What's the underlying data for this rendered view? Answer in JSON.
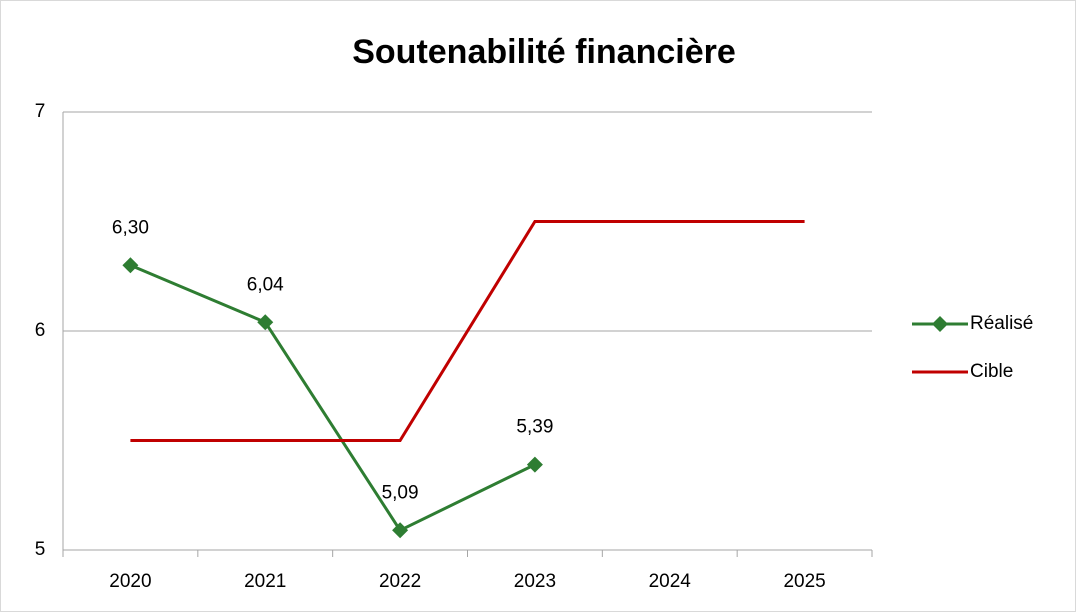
{
  "chart_data": {
    "type": "line",
    "title": "Soutenabilité financière",
    "categories": [
      "2020",
      "2021",
      "2022",
      "2023",
      "2024",
      "2025"
    ],
    "series": [
      {
        "name": "Réalisé",
        "color": "#2e7d32",
        "marker": "diamond",
        "values": [
          6.3,
          6.04,
          5.09,
          5.39,
          null,
          null
        ],
        "value_labels": [
          "6,30",
          "6,04",
          "5,09",
          "5,39",
          null,
          null
        ]
      },
      {
        "name": "Cible",
        "color": "#c00000",
        "values": [
          5.5,
          5.5,
          5.5,
          6.5,
          6.5,
          6.5
        ]
      }
    ],
    "ylim": [
      5,
      7
    ],
    "yticks": [
      5,
      6,
      7
    ],
    "grid": true,
    "legend": "right"
  }
}
